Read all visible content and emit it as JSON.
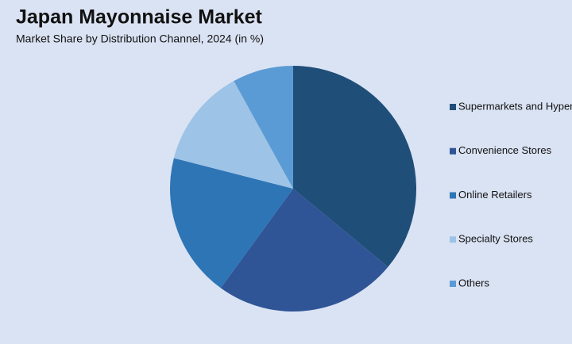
{
  "chart_data": {
    "type": "pie",
    "title": "Japan Mayonnaise Market",
    "subtitle": "Market Share by Distribution Channel, 2024 (in %)",
    "categories": [
      "Supermarkets and Hypermarkets",
      "Convenience Stores",
      "Online Retailers",
      "Specialty Stores",
      "Others"
    ],
    "values": [
      36,
      24,
      19,
      13,
      8
    ],
    "colors": [
      "#1f4e79",
      "#2f5597",
      "#2e75b6",
      "#9dc3e6",
      "#5b9bd5"
    ],
    "legend": "right"
  }
}
